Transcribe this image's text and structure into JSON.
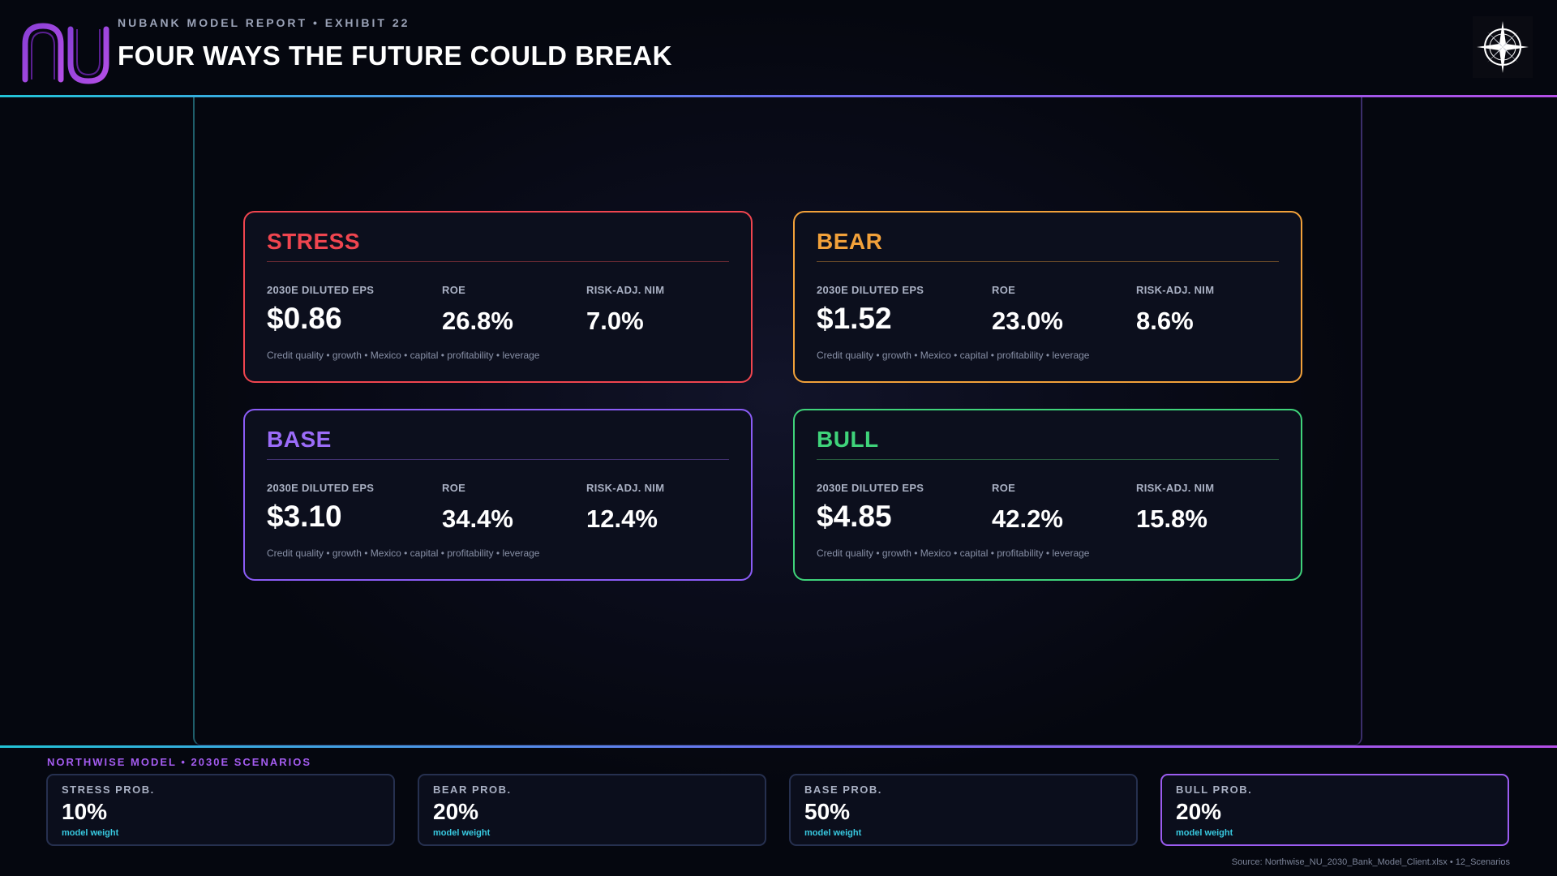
{
  "header": {
    "kicker": "NUBANK MODEL REPORT • EXHIBIT 22",
    "title": "FOUR WAYS THE FUTURE COULD BREAK",
    "logo_text": "nu"
  },
  "colors": {
    "accent_cyan": "#22c3d6",
    "accent_purple": "#b34ee6",
    "stress": "#f0454f",
    "bear": "#f2a13a",
    "base": "#8b5cf6",
    "bull": "#3fd37a"
  },
  "scenarios": [
    {
      "name": "STRESS",
      "eps_label": "2030E DILUTED EPS",
      "eps": "$0.86",
      "roe_label": "ROE",
      "roe": "26.8%",
      "nim_label": "RISK-ADJ. NIM",
      "nim": "7.0%",
      "drivers": "Credit quality • growth • Mexico • capital • profitability • leverage"
    },
    {
      "name": "BEAR",
      "eps_label": "2030E DILUTED EPS",
      "eps": "$1.52",
      "roe_label": "ROE",
      "roe": "23.0%",
      "nim_label": "RISK-ADJ. NIM",
      "nim": "8.6%",
      "drivers": "Credit quality • growth • Mexico • capital • profitability • leverage"
    },
    {
      "name": "BASE",
      "eps_label": "2030E DILUTED EPS",
      "eps": "$3.10",
      "roe_label": "ROE",
      "roe": "34.4%",
      "nim_label": "RISK-ADJ. NIM",
      "nim": "12.4%",
      "drivers": "Credit quality • growth • Mexico • capital • profitability • leverage"
    },
    {
      "name": "BULL",
      "eps_label": "2030E DILUTED EPS",
      "eps": "$4.85",
      "roe_label": "ROE",
      "roe": "42.2%",
      "nim_label": "RISK-ADJ. NIM",
      "nim": "15.8%",
      "drivers": "Credit quality • growth • Mexico • capital • profitability • leverage"
    }
  ],
  "footer": {
    "heading": "NORTHWISE MODEL • 2030E SCENARIOS",
    "probabilities": [
      {
        "label": "STRESS PROB.",
        "value": "10%",
        "sub": "model weight"
      },
      {
        "label": "BEAR PROB.",
        "value": "20%",
        "sub": "model weight"
      },
      {
        "label": "BASE PROB.",
        "value": "50%",
        "sub": "model weight"
      },
      {
        "label": "BULL PROB.",
        "value": "20%",
        "sub": "model weight"
      }
    ],
    "source": "Source: Northwise_NU_2030_Bank_Model_Client.xlsx • 12_Scenarios"
  }
}
